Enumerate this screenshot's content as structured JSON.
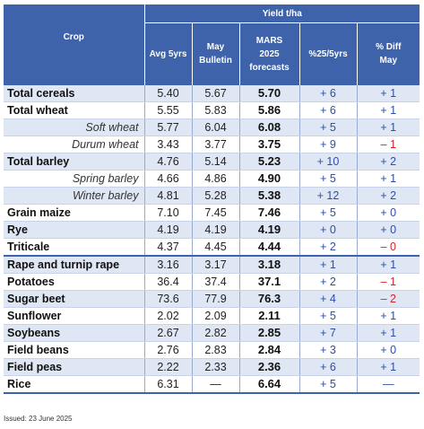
{
  "header": {
    "group_label": "Yield t/ha",
    "crop_label": "Crop",
    "columns": [
      {
        "lines": [
          "Avg 5yrs"
        ]
      },
      {
        "lines": [
          "May",
          "Bulletin"
        ]
      },
      {
        "lines": [
          "MARS",
          "2025",
          "forecasts"
        ]
      },
      {
        "lines": [
          "%25/5yrs"
        ]
      },
      {
        "lines": [
          "% Diff",
          "May"
        ]
      }
    ]
  },
  "rows": [
    {
      "crop": "Total cereals",
      "style": "main",
      "avg": "5.40",
      "may": "5.67",
      "fc": "5.70",
      "d5": "+ 6",
      "dmay": "+ 1"
    },
    {
      "crop": "Total wheat",
      "style": "main",
      "avg": "5.55",
      "may": "5.83",
      "fc": "5.86",
      "d5": "+ 6",
      "dmay": "+ 1"
    },
    {
      "crop": "Soft wheat",
      "style": "sub",
      "avg": "5.77",
      "may": "6.04",
      "fc": "6.08",
      "d5": "+ 5",
      "dmay": "+ 1"
    },
    {
      "crop": "Durum wheat",
      "style": "sub",
      "avg": "3.43",
      "may": "3.77",
      "fc": "3.75",
      "d5": "+ 9",
      "dmay": "– 1"
    },
    {
      "crop": "Total barley",
      "style": "main",
      "avg": "4.76",
      "may": "5.14",
      "fc": "5.23",
      "d5": "+ 10",
      "dmay": "+ 2"
    },
    {
      "crop": "Spring barley",
      "style": "sub",
      "avg": "4.66",
      "may": "4.86",
      "fc": "4.90",
      "d5": "+ 5",
      "dmay": "+ 1"
    },
    {
      "crop": "Winter barley",
      "style": "sub",
      "avg": "4.81",
      "may": "5.28",
      "fc": "5.38",
      "d5": "+ 12",
      "dmay": "+ 2"
    },
    {
      "crop": "Grain maize",
      "style": "main",
      "avg": "7.10",
      "may": "7.45",
      "fc": "7.46",
      "d5": "+ 5",
      "dmay": "+ 0"
    },
    {
      "crop": "Rye",
      "style": "main",
      "avg": "4.19",
      "may": "4.19",
      "fc": "4.19",
      "d5": "+ 0",
      "dmay": "+ 0"
    },
    {
      "crop": "Triticale",
      "style": "main",
      "avg": "4.37",
      "may": "4.45",
      "fc": "4.44",
      "d5": "+ 2",
      "dmay": "– 0"
    },
    {
      "crop": "Rape and turnip rape",
      "style": "main",
      "group_start": true,
      "avg": "3.16",
      "may": "3.17",
      "fc": "3.18",
      "d5": "+ 1",
      "dmay": "+ 1"
    },
    {
      "crop": "Potatoes",
      "style": "main",
      "avg": "36.4",
      "may": "37.4",
      "fc": "37.1",
      "d5": "+ 2",
      "dmay": "– 1"
    },
    {
      "crop": "Sugar beet",
      "style": "main",
      "avg": "73.6",
      "may": "77.9",
      "fc": "76.3",
      "d5": "+ 4",
      "dmay": "– 2"
    },
    {
      "crop": "Sunflower",
      "style": "main",
      "avg": "2.02",
      "may": "2.09",
      "fc": "2.11",
      "d5": "+ 5",
      "dmay": "+ 1"
    },
    {
      "crop": "Soybeans",
      "style": "main",
      "avg": "2.67",
      "may": "2.82",
      "fc": "2.85",
      "d5": "+ 7",
      "dmay": "+ 1"
    },
    {
      "crop": "Field beans",
      "style": "main",
      "avg": "2.76",
      "may": "2.83",
      "fc": "2.84",
      "d5": "+ 3",
      "dmay": "+ 0"
    },
    {
      "crop": "Field peas",
      "style": "main",
      "avg": "2.22",
      "may": "2.33",
      "fc": "2.36",
      "d5": "+ 6",
      "dmay": "+ 1"
    },
    {
      "crop": "Rice",
      "style": "main",
      "avg": "6.31",
      "may": "—",
      "fc": "6.64",
      "d5": "+ 5",
      "dmay": "—"
    }
  ],
  "footer": {
    "issued": "Issued: 23 June 2025"
  },
  "colors": {
    "header_bg": "#3e63ab",
    "row_alt": "#dfe7f4",
    "positive": "#2f4fa6",
    "negative": "#d61f26"
  }
}
